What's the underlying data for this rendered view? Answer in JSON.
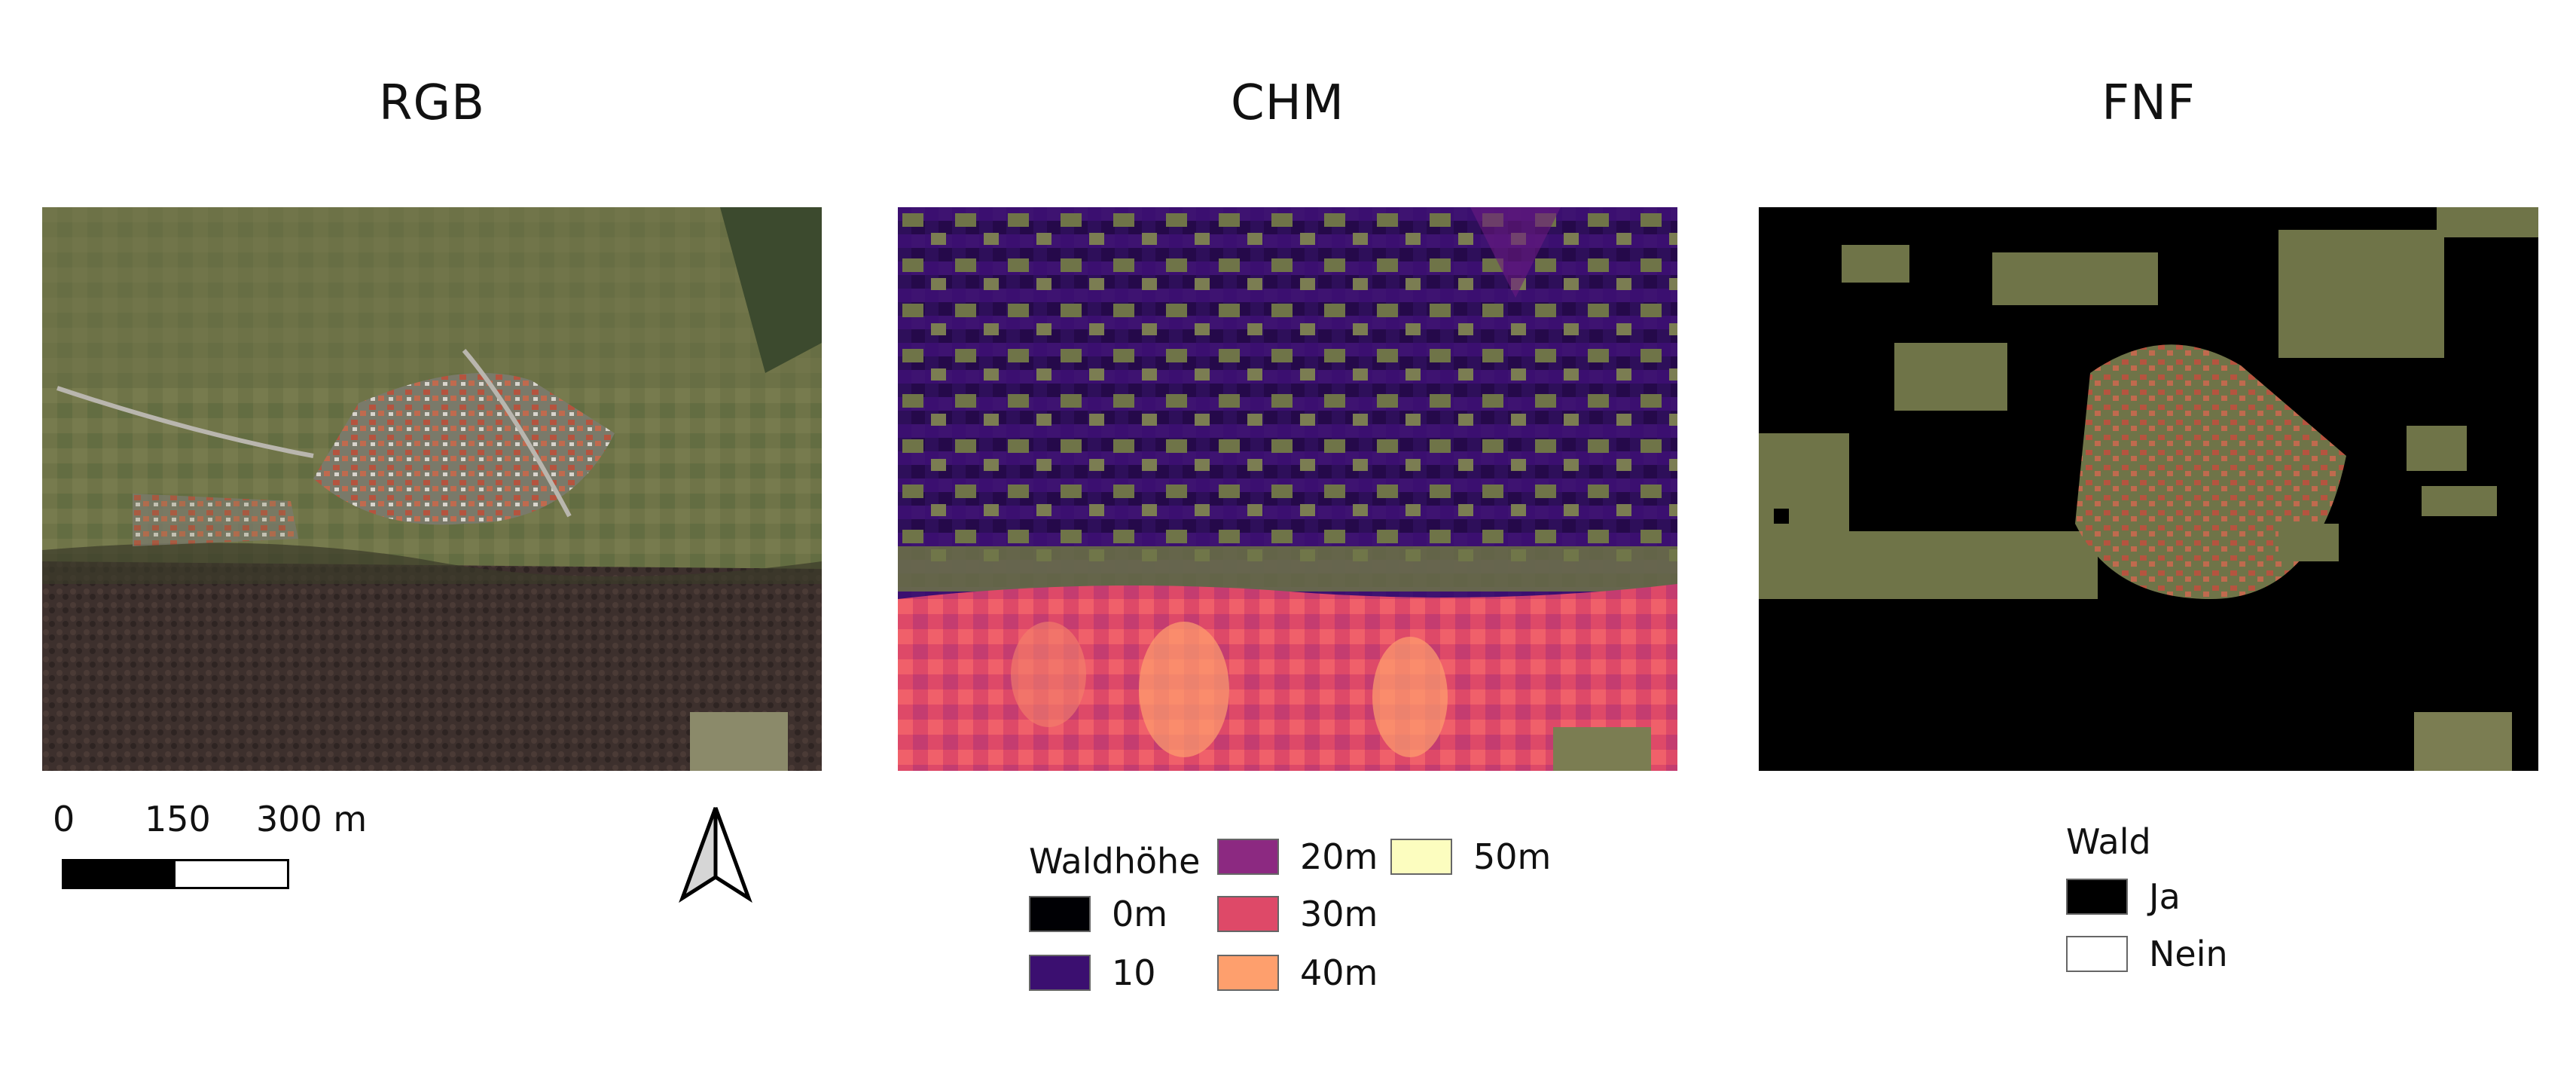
{
  "panels": {
    "rgb": {
      "title": "RGB"
    },
    "chm": {
      "title": "CHM"
    },
    "fnf": {
      "title": "FNF"
    }
  },
  "scale_bar": {
    "labels": [
      "0",
      "150",
      "300 m"
    ]
  },
  "north_arrow": {
    "icon": "north-arrow-icon"
  },
  "chm_legend": {
    "title": "Waldhöhe",
    "items": [
      {
        "label": "0m",
        "color": "#000004"
      },
      {
        "label": "10",
        "color": "#3b0f70"
      },
      {
        "label": "20m",
        "color": "#8c2981"
      },
      {
        "label": "30m",
        "color": "#de4968"
      },
      {
        "label": "40m",
        "color": "#fe9f6d"
      },
      {
        "label": "50m",
        "color": "#fcfdbf"
      }
    ]
  },
  "fnf_legend": {
    "title": "Wald",
    "items": [
      {
        "label": "Ja",
        "color": "#000000"
      },
      {
        "label": "Nein",
        "color": "#ffffff"
      }
    ]
  },
  "colors": {
    "forest_canopy_dark": "#3a2e2c",
    "village_roof": "#b5543f",
    "meadow": "#6f7448"
  }
}
